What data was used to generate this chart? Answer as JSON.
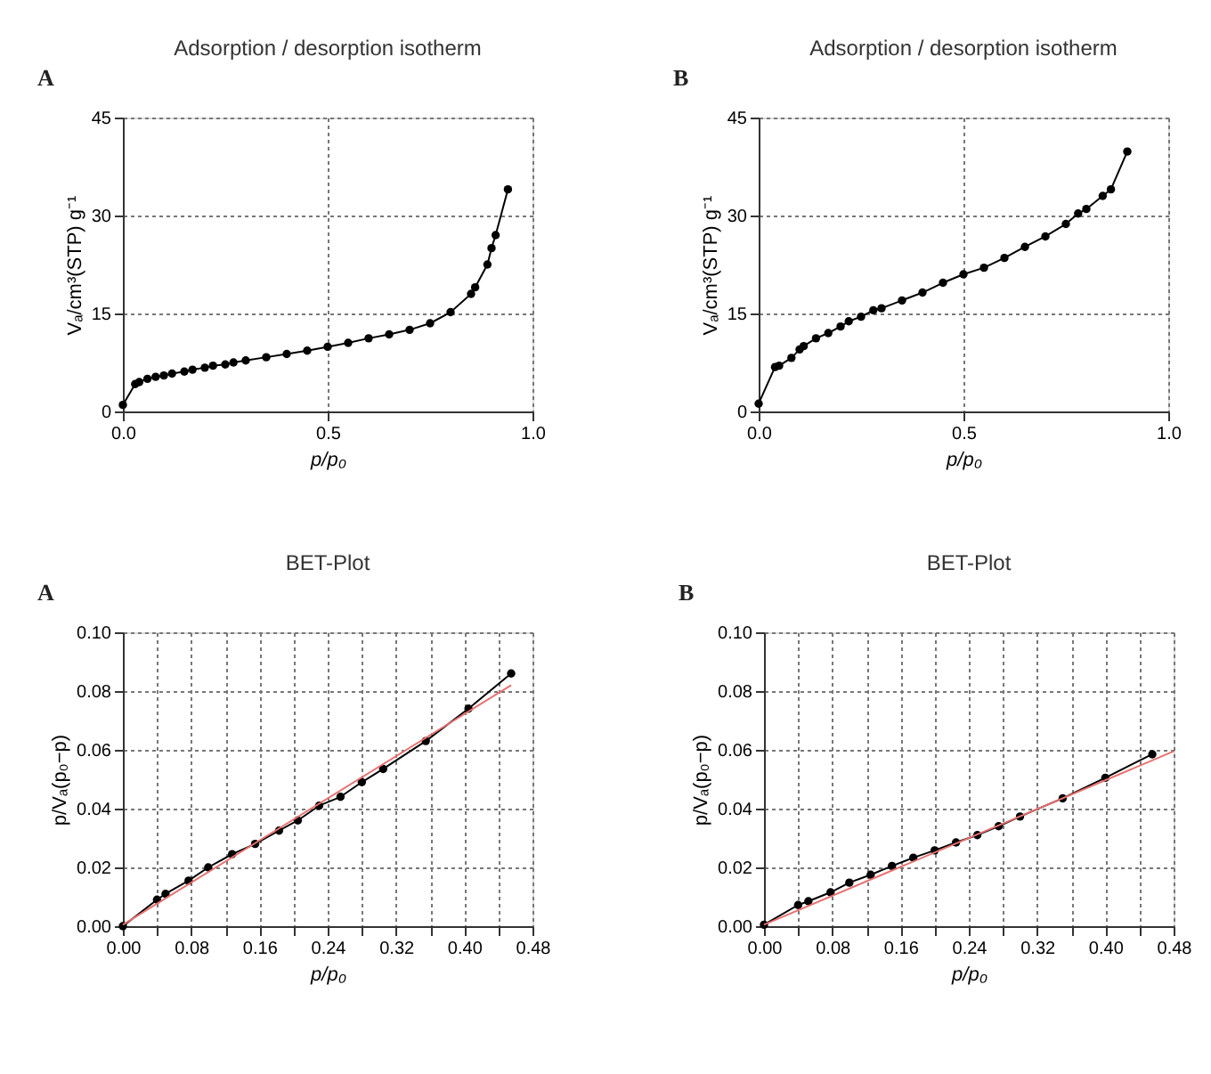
{
  "chart_data": [
    {
      "type": "line",
      "title": "Adsorption / desorption isotherm",
      "annotations": [
        "A"
      ],
      "xlabel": "p/p₀",
      "ylabel": "Vₐ/cm³(STP) g⁻¹",
      "xlim": [
        0,
        1
      ],
      "ylim": [
        0,
        45
      ],
      "xticks": [
        {
          "value": 0,
          "label": "0.0"
        },
        {
          "value": 0.5,
          "label": "0.5"
        },
        {
          "value": 1,
          "label": "1.0"
        }
      ],
      "yticks": [
        0,
        15,
        30,
        45
      ],
      "grid": true,
      "marker": "circle",
      "line_style": "solid",
      "series": [
        {
          "color": "#000000",
          "x": [
            0.0,
            0.03,
            0.04,
            0.06,
            0.08,
            0.1,
            0.12,
            0.15,
            0.17,
            0.2,
            0.22,
            0.25,
            0.27,
            0.3,
            0.35,
            0.4,
            0.45,
            0.5,
            0.55,
            0.6,
            0.65,
            0.7,
            0.75,
            0.8,
            0.85,
            0.86,
            0.89,
            0.9,
            0.91,
            0.94
          ],
          "values": [
            1,
            4.2,
            4.5,
            5,
            5.3,
            5.5,
            5.8,
            6.1,
            6.4,
            6.7,
            7,
            7.2,
            7.5,
            7.8,
            8.3,
            8.8,
            9.3,
            9.9,
            10.5,
            11.2,
            11.8,
            12.5,
            13.5,
            15.2,
            18,
            19,
            22.5,
            25,
            27,
            34
          ]
        }
      ]
    },
    {
      "type": "line",
      "title": "Adsorption / desorption isotherm",
      "annotations": [
        "B"
      ],
      "xlabel": "p/p₀",
      "ylabel": "Vₐ/cm³(STP) g⁻¹",
      "xlim": [
        0,
        1
      ],
      "ylim": [
        0,
        45
      ],
      "xticks": [
        {
          "value": 0,
          "label": "0.0"
        },
        {
          "value": 0.5,
          "label": "0.5"
        },
        {
          "value": 1,
          "label": "1.0"
        }
      ],
      "yticks": [
        0,
        15,
        30,
        45
      ],
      "grid": true,
      "marker": "circle",
      "line_style": "solid",
      "series": [
        {
          "color": "#000000",
          "x": [
            0,
            0.04,
            0.05,
            0.08,
            0.1,
            0.11,
            0.14,
            0.17,
            0.2,
            0.22,
            0.25,
            0.28,
            0.3,
            0.35,
            0.4,
            0.45,
            0.5,
            0.55,
            0.6,
            0.65,
            0.7,
            0.75,
            0.78,
            0.8,
            0.84,
            0.86,
            0.9
          ],
          "values": [
            1.2,
            6.8,
            7,
            8.2,
            9.5,
            10,
            11.2,
            12,
            13,
            13.8,
            14.5,
            15.5,
            15.8,
            17,
            18.2,
            19.7,
            21,
            22,
            23.5,
            25.2,
            26.8,
            28.7,
            30.3,
            31,
            33,
            34,
            39.8
          ]
        }
      ]
    },
    {
      "type": "line",
      "title": "BET-Plot",
      "annotations": [
        "A"
      ],
      "xlabel": "p/p₀",
      "ylabel": "p/Vₐ(p₀−p)",
      "xlim": [
        0,
        0.48
      ],
      "ylim": [
        0,
        0.1
      ],
      "xticks": [
        {
          "value": 0,
          "label": "0.00"
        },
        {
          "value": 0.04,
          "label": null
        },
        {
          "value": 0.08,
          "label": "0.08"
        },
        {
          "value": 0.12,
          "label": null
        },
        {
          "value": 0.16,
          "label": "0.16"
        },
        {
          "value": 0.2,
          "label": null
        },
        {
          "value": 0.24,
          "label": "0.24"
        },
        {
          "value": 0.28,
          "label": null
        },
        {
          "value": 0.32,
          "label": "0.32"
        },
        {
          "value": 0.36,
          "label": null
        },
        {
          "value": 0.4,
          "label": "0.40"
        },
        {
          "value": 0.44,
          "label": null
        },
        {
          "value": 0.48,
          "label": "0.48"
        }
      ],
      "yticks": [
        {
          "value": 0,
          "label": "0.00"
        },
        {
          "value": 0.02,
          "label": "0.02"
        },
        {
          "value": 0.04,
          "label": "0.04"
        },
        {
          "value": 0.06,
          "label": "0.06"
        },
        {
          "value": 0.08,
          "label": "0.08"
        },
        {
          "value": 0.1,
          "label": "0.10"
        }
      ],
      "grid": true,
      "line_style": "solid",
      "series": [
        {
          "color": "#000000",
          "marker": "circle",
          "x": [
            0,
            0.04,
            0.05,
            0.077,
            0.1,
            0.128,
            0.155,
            0.183,
            0.205,
            0.23,
            0.255,
            0.28,
            0.305,
            0.355,
            0.405,
            0.455
          ],
          "values": [
            0,
            0.009,
            0.011,
            0.0155,
            0.02,
            0.0245,
            0.028,
            0.0325,
            0.036,
            0.041,
            0.044,
            0.049,
            0.0535,
            0.063,
            0.074,
            0.086
          ]
        },
        {
          "color": "#e87070",
          "marker": "none",
          "x": [
            0,
            0.455
          ],
          "values": [
            0.0005,
            0.082
          ]
        }
      ]
    },
    {
      "type": "line",
      "title": "BET-Plot",
      "annotations": [
        "B"
      ],
      "xlabel": "p/p₀",
      "ylabel": "p/Vₐ(p₀−p)",
      "xlim": [
        0,
        0.48
      ],
      "ylim": [
        0,
        0.1
      ],
      "xticks": [
        {
          "value": 0,
          "label": "0.00"
        },
        {
          "value": 0.04,
          "label": null
        },
        {
          "value": 0.08,
          "label": "0.08"
        },
        {
          "value": 0.12,
          "label": null
        },
        {
          "value": 0.16,
          "label": "0.16"
        },
        {
          "value": 0.2,
          "label": null
        },
        {
          "value": 0.24,
          "label": "0.24"
        },
        {
          "value": 0.28,
          "label": null
        },
        {
          "value": 0.32,
          "label": "0.32"
        },
        {
          "value": 0.36,
          "label": null
        },
        {
          "value": 0.4,
          "label": "0.40"
        },
        {
          "value": 0.44,
          "label": null
        },
        {
          "value": 0.48,
          "label": "0.48"
        }
      ],
      "yticks": [
        {
          "value": 0,
          "label": "0.00"
        },
        {
          "value": 0.02,
          "label": "0.02"
        },
        {
          "value": 0.04,
          "label": "0.04"
        },
        {
          "value": 0.06,
          "label": "0.06"
        },
        {
          "value": 0.08,
          "label": "0.08"
        },
        {
          "value": 0.1,
          "label": "0.10"
        }
      ],
      "grid": true,
      "line_style": "solid",
      "series": [
        {
          "color": "#000000",
          "marker": "circle",
          "x": [
            0,
            0.04,
            0.052,
            0.078,
            0.1,
            0.125,
            0.15,
            0.175,
            0.2,
            0.225,
            0.25,
            0.275,
            0.3,
            0.35,
            0.4,
            0.455
          ],
          "values": [
            0.0005,
            0.0072,
            0.0085,
            0.0115,
            0.0148,
            0.0175,
            0.0205,
            0.0233,
            0.0258,
            0.0285,
            0.031,
            0.034,
            0.0373,
            0.0435,
            0.0505,
            0.0585
          ]
        },
        {
          "color": "#e87070",
          "marker": "none",
          "x": [
            0,
            0.48
          ],
          "values": [
            0.0005,
            0.0595
          ]
        }
      ]
    }
  ]
}
